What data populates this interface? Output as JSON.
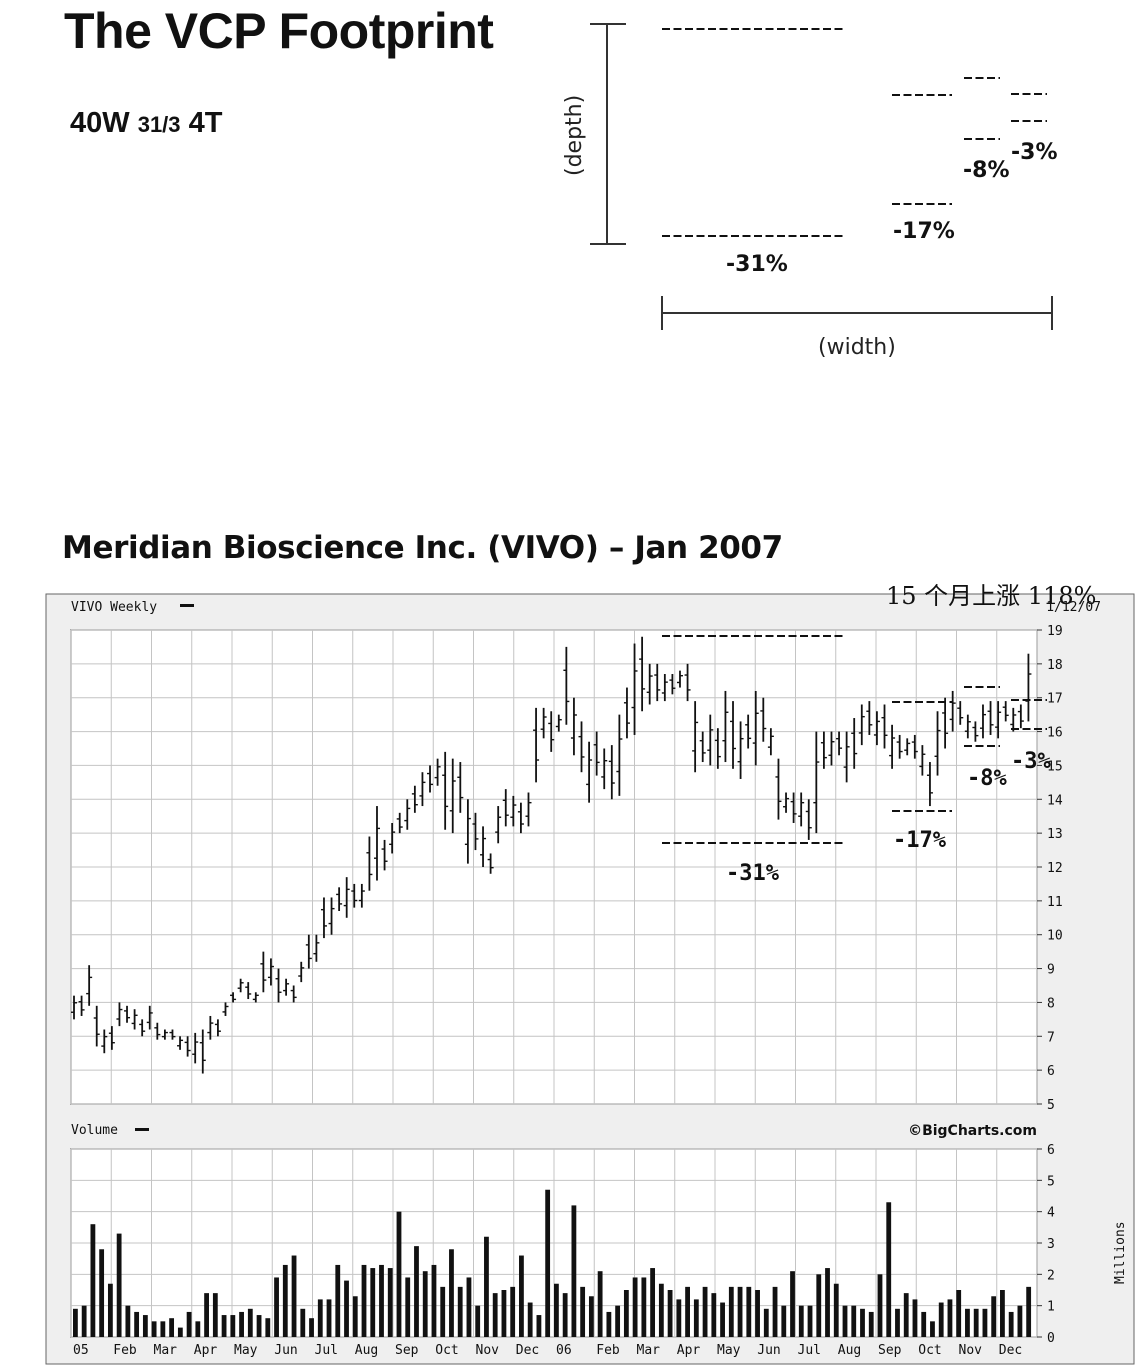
{
  "diagram": {
    "title": "The VCP Footprint",
    "formula": {
      "weeks": "40W",
      "ratio": "31/3",
      "contractions": "4T"
    },
    "depth_label": "(depth)",
    "width_label": "(width)",
    "contractions": [
      "-31%",
      "-17%",
      "-8%",
      "-3%"
    ]
  },
  "chart_title": "Meridian Bioscience Inc. (VIVO) – Jan 2007",
  "annotation": "15 个月上涨 118%",
  "chart_data": [
    {
      "type": "ohlc",
      "title": "VIVO Weekly",
      "date_label": "1/12/07",
      "y_ticks": [
        5,
        6,
        7,
        8,
        9,
        10,
        11,
        12,
        13,
        14,
        15,
        16,
        17,
        18,
        19
      ],
      "ylim": [
        5,
        19
      ],
      "x_tick_labels": [
        "05",
        "Feb",
        "Mar",
        "Apr",
        "May",
        "Jun",
        "Jul",
        "Aug",
        "Sep",
        "Oct",
        "Nov",
        "Dec",
        "06",
        "Feb",
        "Mar",
        "Apr",
        "May",
        "Jun",
        "Jul",
        "Aug",
        "Sep",
        "Oct",
        "Nov",
        "Dec"
      ],
      "grid": true,
      "ranges": [
        [
          7.5,
          8.2
        ],
        [
          7.6,
          8.2
        ],
        [
          7.9,
          9.1
        ],
        [
          6.7,
          7.9
        ],
        [
          6.5,
          7.2
        ],
        [
          6.6,
          7.3
        ],
        [
          7.3,
          8.0
        ],
        [
          7.4,
          7.9
        ],
        [
          7.2,
          7.8
        ],
        [
          7.0,
          7.5
        ],
        [
          7.2,
          7.9
        ],
        [
          6.9,
          7.4
        ],
        [
          6.9,
          7.2
        ],
        [
          6.9,
          7.2
        ],
        [
          6.6,
          7.0
        ],
        [
          6.4,
          7.0
        ],
        [
          6.2,
          7.1
        ],
        [
          5.9,
          7.2
        ],
        [
          6.9,
          7.6
        ],
        [
          7.0,
          7.5
        ],
        [
          7.6,
          8.0
        ],
        [
          8.0,
          8.3
        ],
        [
          8.3,
          8.7
        ],
        [
          8.1,
          8.6
        ],
        [
          8.0,
          8.3
        ],
        [
          8.3,
          9.5
        ],
        [
          8.5,
          9.3
        ],
        [
          8.0,
          9.0
        ],
        [
          8.2,
          8.7
        ],
        [
          8.0,
          8.5
        ],
        [
          8.6,
          9.2
        ],
        [
          9.0,
          10.0
        ],
        [
          9.2,
          10.0
        ],
        [
          9.9,
          11.1
        ],
        [
          10.0,
          11.1
        ],
        [
          10.7,
          11.4
        ],
        [
          10.5,
          11.7
        ],
        [
          10.8,
          11.5
        ],
        [
          10.8,
          11.5
        ],
        [
          11.3,
          12.9
        ],
        [
          11.6,
          13.8
        ],
        [
          11.9,
          12.8
        ],
        [
          12.4,
          13.3
        ],
        [
          13.0,
          13.6
        ],
        [
          13.1,
          14.0
        ],
        [
          13.6,
          14.4
        ],
        [
          13.8,
          14.8
        ],
        [
          14.2,
          15.0
        ],
        [
          14.4,
          15.2
        ],
        [
          13.1,
          15.4
        ],
        [
          13.0,
          15.2
        ],
        [
          13.6,
          15.1
        ],
        [
          12.1,
          14.0
        ],
        [
          12.5,
          13.6
        ],
        [
          12.0,
          13.2
        ],
        [
          11.8,
          12.4
        ],
        [
          12.7,
          13.8
        ],
        [
          13.2,
          14.3
        ],
        [
          13.2,
          14.1
        ],
        [
          13.0,
          13.9
        ],
        [
          13.2,
          14.2
        ],
        [
          14.5,
          16.7
        ],
        [
          15.8,
          16.7
        ],
        [
          15.4,
          16.6
        ],
        [
          16.0,
          16.5
        ],
        [
          16.2,
          18.5
        ],
        [
          15.3,
          17.0
        ],
        [
          14.8,
          16.3
        ],
        [
          13.9,
          15.7
        ],
        [
          14.7,
          16.0
        ],
        [
          14.3,
          15.5
        ],
        [
          14.0,
          15.6
        ],
        [
          14.1,
          16.5
        ],
        [
          15.8,
          17.3
        ],
        [
          15.9,
          18.6
        ],
        [
          16.6,
          18.8
        ],
        [
          16.8,
          18.0
        ],
        [
          16.9,
          18.0
        ],
        [
          16.9,
          17.7
        ],
        [
          17.1,
          17.7
        ],
        [
          17.3,
          17.8
        ],
        [
          16.9,
          18.0
        ],
        [
          14.8,
          16.9
        ],
        [
          15.1,
          16.0
        ],
        [
          15.0,
          16.5
        ],
        [
          14.9,
          16.1
        ],
        [
          15.1,
          17.2
        ],
        [
          14.9,
          16.9
        ],
        [
          14.6,
          16.3
        ],
        [
          15.5,
          16.5
        ],
        [
          15.0,
          17.2
        ],
        [
          15.7,
          17.0
        ],
        [
          15.3,
          16.1
        ],
        [
          13.4,
          15.2
        ],
        [
          13.6,
          14.2
        ],
        [
          13.3,
          14.2
        ],
        [
          13.2,
          14.2
        ],
        [
          12.8,
          14.0
        ],
        [
          13.0,
          16.0
        ],
        [
          14.9,
          16.0
        ],
        [
          15.0,
          16.0
        ],
        [
          15.3,
          16.0
        ],
        [
          14.5,
          16.0
        ],
        [
          14.9,
          16.4
        ],
        [
          15.6,
          16.8
        ],
        [
          15.9,
          16.9
        ],
        [
          15.6,
          16.6
        ],
        [
          15.5,
          16.8
        ],
        [
          14.9,
          16.2
        ],
        [
          15.2,
          15.9
        ],
        [
          15.3,
          15.8
        ],
        [
          15.2,
          15.9
        ],
        [
          14.7,
          15.6
        ],
        [
          13.8,
          15.1
        ],
        [
          14.7,
          16.6
        ],
        [
          15.5,
          17.0
        ],
        [
          16.0,
          17.2
        ],
        [
          16.2,
          16.9
        ],
        [
          15.8,
          16.5
        ],
        [
          15.7,
          16.3
        ],
        [
          15.8,
          16.8
        ],
        [
          15.9,
          16.9
        ],
        [
          15.8,
          16.9
        ],
        [
          16.3,
          16.9
        ],
        [
          16.0,
          16.7
        ],
        [
          16.1,
          16.8
        ],
        [
          16.3,
          18.3
        ]
      ],
      "annotations": [
        "-31%",
        "-17%",
        "-8%",
        "-3%"
      ]
    },
    {
      "type": "bar",
      "title": "Volume",
      "source": "©BigCharts.com",
      "ylabel": "Millions",
      "y_ticks": [
        0,
        1,
        2,
        3,
        4,
        5,
        6
      ],
      "ylim": [
        0,
        6
      ],
      "values": [
        0.9,
        1.0,
        3.6,
        2.8,
        1.7,
        3.3,
        1.0,
        0.8,
        0.7,
        0.5,
        0.5,
        0.6,
        0.3,
        0.8,
        0.5,
        1.4,
        1.4,
        0.7,
        0.7,
        0.8,
        0.9,
        0.7,
        0.6,
        1.9,
        2.3,
        2.6,
        0.9,
        0.6,
        1.2,
        1.2,
        2.3,
        1.8,
        1.3,
        2.3,
        2.2,
        2.3,
        2.2,
        4.0,
        1.9,
        2.9,
        2.1,
        2.3,
        1.6,
        2.8,
        1.6,
        1.9,
        1.0,
        3.2,
        1.4,
        1.5,
        1.6,
        2.6,
        1.1,
        0.7,
        4.7,
        1.7,
        1.4,
        4.2,
        1.6,
        1.3,
        2.1,
        0.8,
        1.0,
        1.5,
        1.9,
        1.9,
        2.2,
        1.7,
        1.5,
        1.2,
        1.6,
        1.2,
        1.6,
        1.4,
        1.1,
        1.6,
        1.6,
        1.6,
        1.5,
        0.9,
        1.6,
        1.0,
        2.1,
        1.0,
        1.0,
        2.0,
        2.2,
        1.7,
        1.0,
        1.0,
        0.9,
        0.8,
        2.0,
        4.3,
        0.9,
        1.4,
        1.2,
        0.8,
        0.5,
        1.1,
        1.2,
        1.5,
        0.9,
        0.9,
        0.9,
        1.3,
        1.5,
        0.8,
        1.0,
        1.6
      ]
    }
  ]
}
